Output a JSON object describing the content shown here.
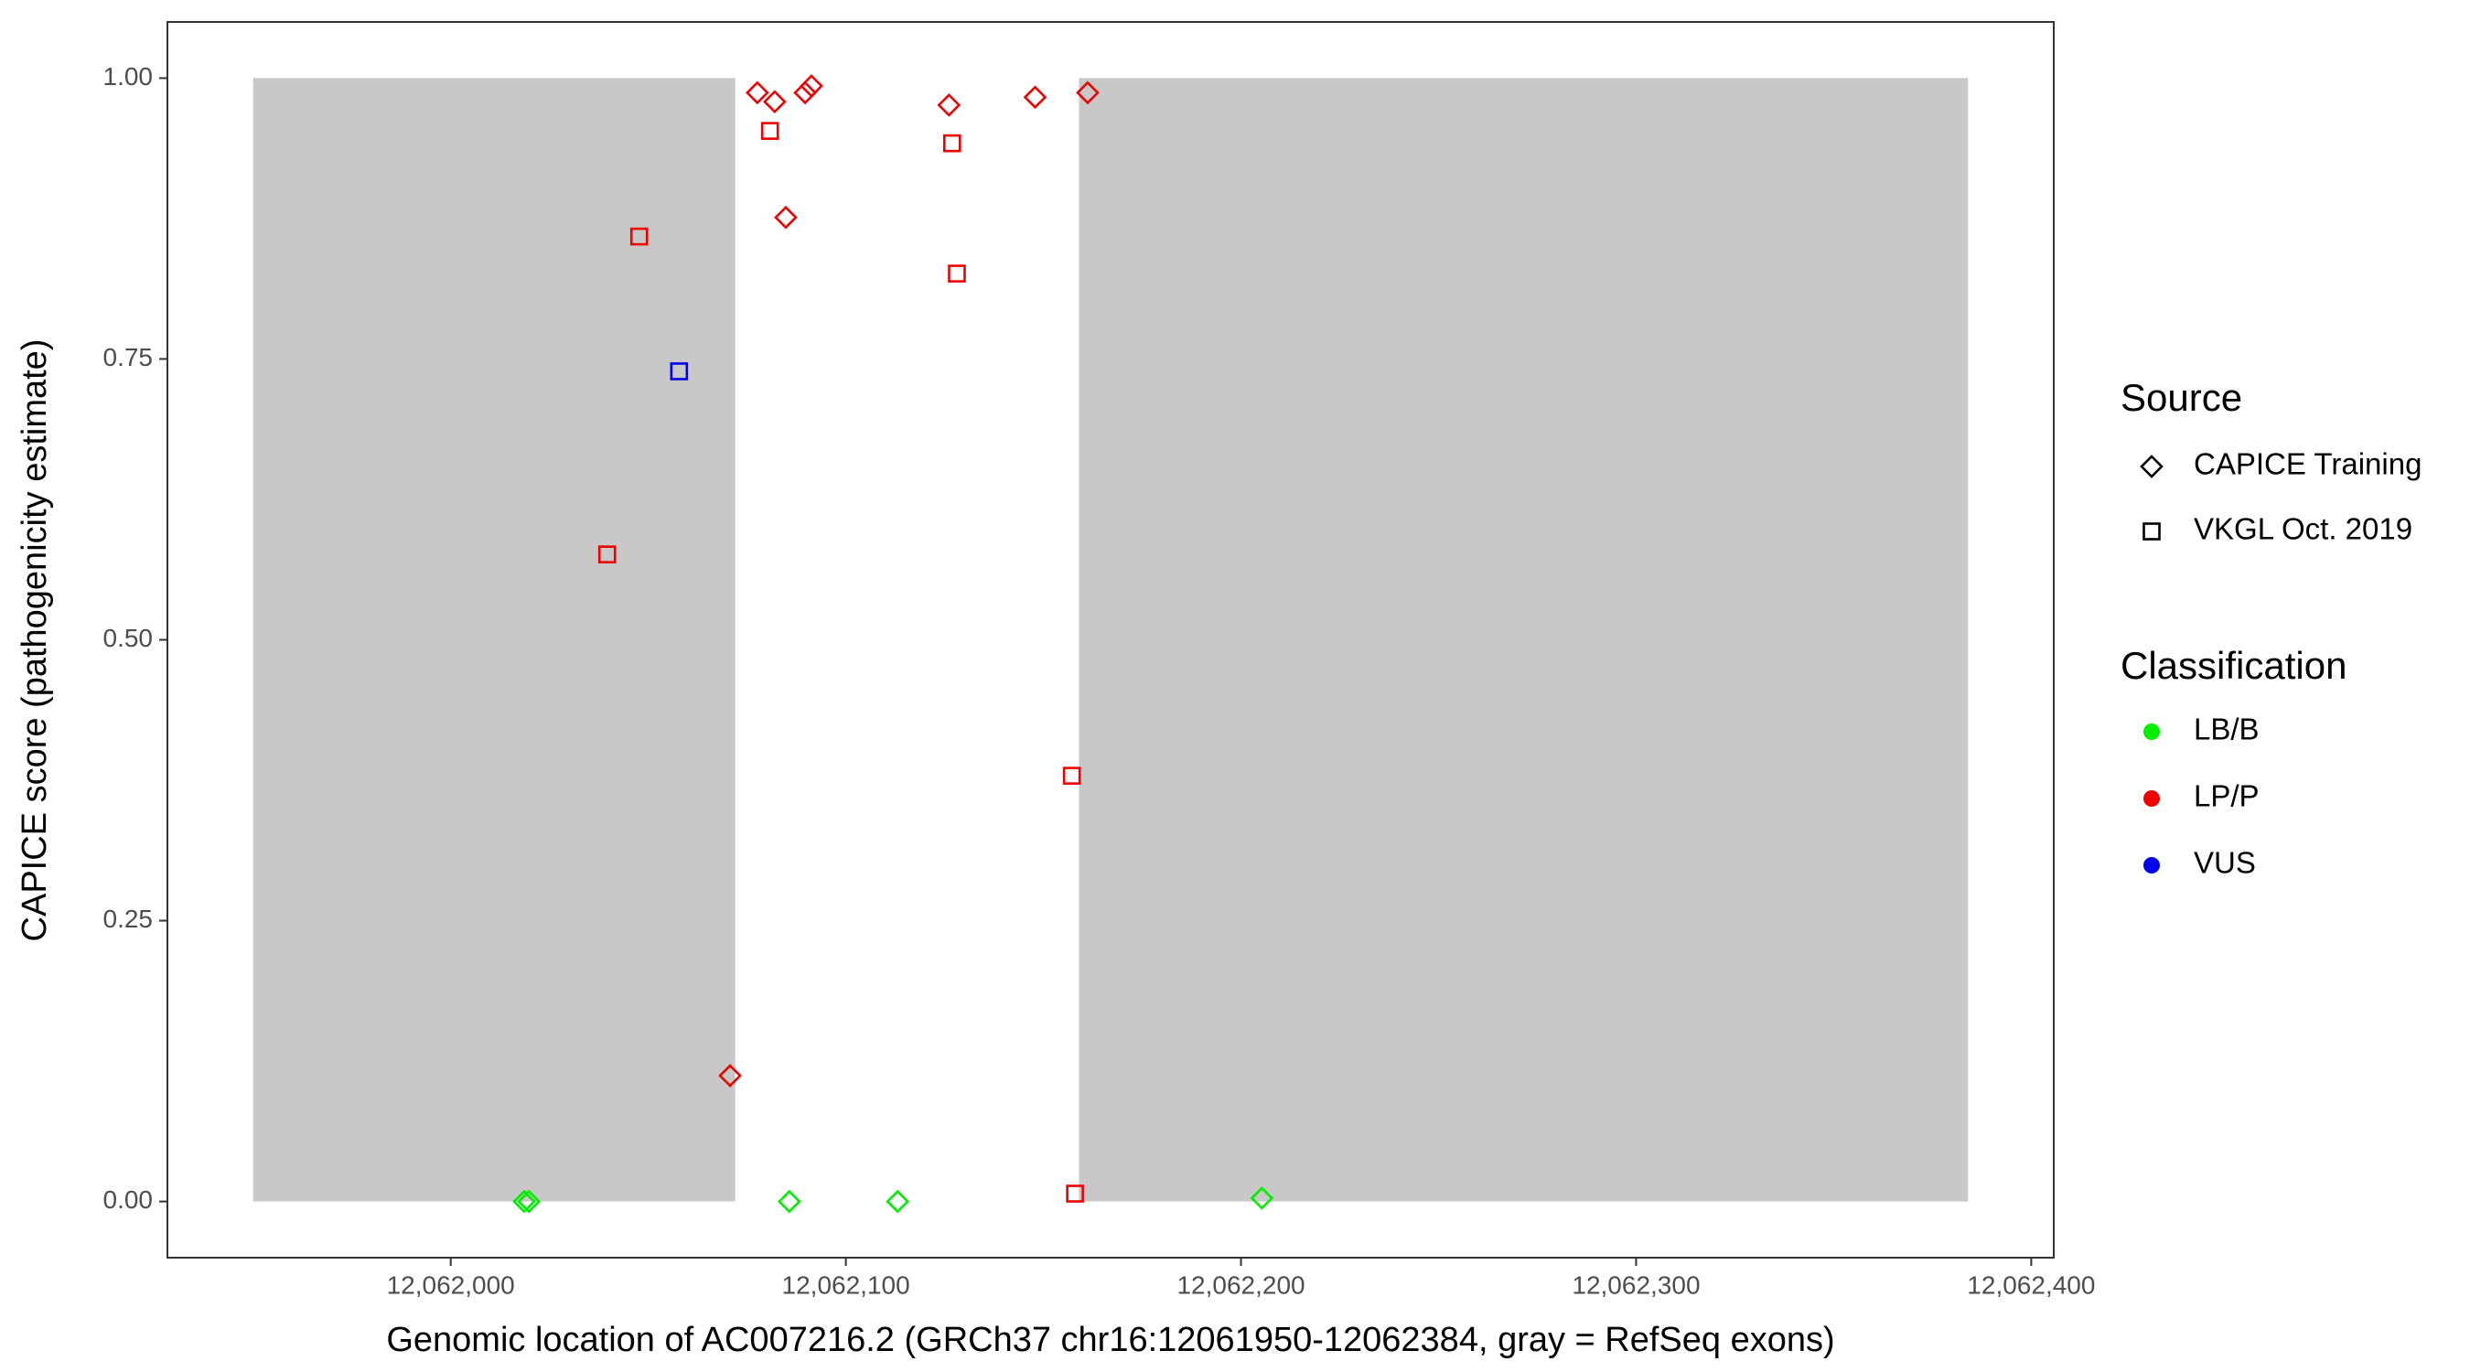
{
  "chart_data": {
    "type": "scatter",
    "x_label": "Genomic location of AC007216.2 (GRCh37 chr16:12061950-12062384, gray = RefSeq exons)",
    "y_label": "CAPICE score (pathogenicity estimate)",
    "xlim": [
      12061928.3,
      12062405.7
    ],
    "ylim": [
      -0.05,
      1.05
    ],
    "xticks": [
      {
        "value": 12062000,
        "label": "12,062,000"
      },
      {
        "value": 12062100,
        "label": "12,062,100"
      },
      {
        "value": 12062200,
        "label": "12,062,200"
      },
      {
        "value": 12062300,
        "label": "12,062,300"
      },
      {
        "value": 12062400,
        "label": "12,062,400"
      }
    ],
    "yticks": [
      {
        "value": 0,
        "label": "0.00"
      },
      {
        "value": 0.25,
        "label": "0.25"
      },
      {
        "value": 0.5,
        "label": "0.50"
      },
      {
        "value": 0.75,
        "label": "0.75"
      },
      {
        "value": 1,
        "label": "1.00"
      }
    ],
    "exon_color": "#c8c8c8",
    "exons": [
      {
        "start": 12061950,
        "end": 12062072,
        "ymin": 0,
        "ymax": 1
      },
      {
        "start": 12062159,
        "end": 12062384,
        "ymin": 0,
        "ymax": 1
      }
    ],
    "source_title": "Source",
    "sources": [
      {
        "name": "CAPICE Training",
        "shape": "diamond"
      },
      {
        "name": "VKGL Oct. 2019",
        "shape": "square"
      }
    ],
    "classification_title": "Classification",
    "classifications": [
      {
        "name": "LB/B",
        "color": "#00ee00"
      },
      {
        "name": "LP/P",
        "color": "#ee0000"
      },
      {
        "name": "VUS",
        "color": "#0000ee"
      }
    ],
    "series": [
      {
        "source": 0,
        "classification": 1,
        "x": [
          12062077.6,
          12062082.0,
          12062084.8,
          12062089.7,
          12062091.3,
          12062126.1,
          12062147.9,
          12062161.2,
          12062070.7
        ],
        "y": [
          0.987,
          0.979,
          0.876,
          0.987,
          0.993,
          0.976,
          0.983,
          0.987,
          0.112
        ]
      },
      {
        "source": 0,
        "classification": 0,
        "x": [
          12062018.6,
          12062019.8,
          12062085.7,
          12062113.1,
          12062205.3
        ],
        "y": [
          0,
          0,
          0,
          0,
          0.003
        ]
      },
      {
        "source": 1,
        "classification": 1,
        "x": [
          12062047.7,
          12062039.6,
          12062080.8,
          12062126.9,
          12062128.1,
          12062157.2,
          12062158.0
        ],
        "y": [
          0.859,
          0.576,
          0.953,
          0.942,
          0.826,
          0.379,
          0.007
        ]
      },
      {
        "source": 1,
        "classification": 2,
        "x": [
          12062057.8
        ],
        "y": [
          0.739
        ]
      }
    ]
  }
}
